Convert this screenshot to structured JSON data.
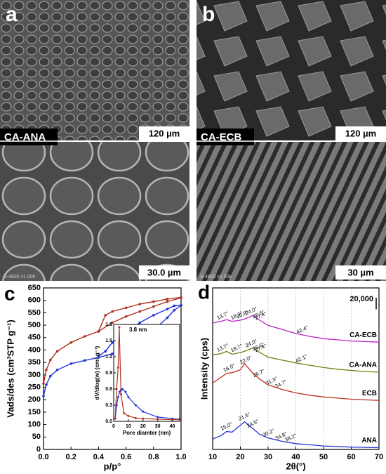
{
  "images": {
    "a": {
      "letter": "a",
      "sample": "CA-ANA",
      "scale_top": "120 µm",
      "scale_bottom": "30.0 µm",
      "instrument": "S-4800 x1.00k"
    },
    "b": {
      "letter": "b",
      "sample": "CA-ECB",
      "scale_top": "120 µm",
      "scale_bottom": "30 µm",
      "instrument": "S-4800 x1.00k"
    }
  },
  "chart_data": [
    {
      "type": "line",
      "panel": "c",
      "xlabel": "p/p°",
      "ylabel": "Vads/des (cm³STP g⁻¹)",
      "xlim": [
        0,
        1
      ],
      "xticks": [
        {
          "value": 0,
          "label": "0.0"
        },
        0.2,
        0.4,
        0.6,
        0.8,
        {
          "value": 1,
          "label": "1.0"
        }
      ],
      "ylim": [
        0,
        650
      ],
      "yticks": [
        0,
        50,
        100,
        150,
        200,
        250,
        300,
        350,
        400,
        450,
        500,
        550,
        600,
        650
      ],
      "series": [
        {
          "name": "CA-ANA",
          "color": "#2233dd",
          "branches": [
            {
              "x": [
                0,
                0.02,
                0.05,
                0.1,
                0.2,
                0.3,
                0.4,
                0.5,
                0.6,
                0.7,
                0.8,
                0.9,
                0.95,
                1.0
              ],
              "values": [
                215,
                260,
                295,
                320,
                345,
                358,
                370,
                385,
                410,
                440,
                480,
                530,
                560,
                580
              ]
            },
            {
              "x": [
                1.0,
                0.95,
                0.9,
                0.8,
                0.7,
                0.6,
                0.5,
                0.45,
                0.4
              ],
              "values": [
                580,
                578,
                565,
                540,
                510,
                470,
                430,
                395,
                375
              ]
            }
          ]
        },
        {
          "name": "CA-ECB",
          "color": "#b03020",
          "branches": [
            {
              "x": [
                0,
                0.02,
                0.05,
                0.1,
                0.2,
                0.3,
                0.4,
                0.5,
                0.6,
                0.7,
                0.8,
                0.9,
                1.0
              ],
              "values": [
                265,
                320,
                360,
                395,
                430,
                455,
                475,
                510,
                535,
                555,
                575,
                595,
                610
              ]
            },
            {
              "x": [
                1.0,
                0.9,
                0.8,
                0.7,
                0.6,
                0.5,
                0.45,
                0.4
              ],
              "values": [
                612,
                605,
                595,
                585,
                570,
                555,
                540,
                475
              ]
            }
          ]
        }
      ],
      "inset": {
        "xlabel": "Pore diamter (nm)",
        "ylabel": "dV/dlog(w) (cm³ g⁻¹)",
        "annotation": "3.8 nm",
        "xlim": [
          0,
          45
        ],
        "xticks": [
          0,
          10,
          20,
          30,
          40
        ],
        "ylim": [
          0,
          1.8
        ],
        "yticks": [
          {
            "value": 0,
            "label": "0.0"
          },
          0.3,
          0.6,
          0.9,
          1.2,
          1.5,
          1.8
        ],
        "series": [
          {
            "color": "#2233dd",
            "x": [
              1,
              2,
              3,
              4,
              5,
              6,
              8,
              10,
              15,
              20,
              30,
              40,
              45
            ],
            "values": [
              0.05,
              0.3,
              0.45,
              0.55,
              0.58,
              0.6,
              0.55,
              0.45,
              0.3,
              0.18,
              0.08,
              0.05,
              0.04
            ]
          },
          {
            "color": "#b03020",
            "x": [
              1,
              2,
              3,
              3.8,
              5,
              7,
              10,
              15,
              20,
              30,
              40,
              45
            ],
            "values": [
              0.05,
              0.6,
              1.0,
              1.75,
              0.5,
              0.15,
              0.1,
              0.06,
              0.05,
              0.04,
              0.03,
              0.03
            ]
          }
        ]
      }
    },
    {
      "type": "line",
      "panel": "d",
      "xlabel": "2θ(°)",
      "ylabel": "Intensity (cps)",
      "grid": true,
      "xlim": [
        10,
        70
      ],
      "xticks": [
        10,
        20,
        30,
        40,
        50,
        60,
        70
      ],
      "ylim": [
        0,
        280000
      ],
      "scale_bar": {
        "value": 20000,
        "label": "20,000"
      },
      "x": [
        10,
        13,
        15,
        17,
        20,
        21.5,
        24.5,
        27,
        30,
        35,
        40,
        45,
        50,
        55,
        60,
        65,
        70
      ],
      "series": [
        {
          "name": "ANA",
          "color": "#2233dd",
          "values": [
            18000,
            24000,
            31000,
            30000,
            42000,
            48000,
            36000,
            26000,
            20000,
            14000,
            10000,
            8000,
            6000,
            5000,
            4000,
            3500,
            3000
          ],
          "peaks": [
            {
              "value": 15,
              "label": "15.0°"
            },
            {
              "value": 21.5,
              "label": "21.5°"
            },
            {
              "value": 24.5,
              "label": "24.5°"
            },
            {
              "value": 30.2,
              "label": "30.2°"
            },
            {
              "value": 34.8,
              "label": "34.8°"
            },
            {
              "value": 38.2,
              "label": "38.2°"
            }
          ]
        },
        {
          "name": "ECB",
          "color": "#c03020",
          "values": [
            115000,
            125000,
            132000,
            133000,
            138000,
            149000,
            132000,
            122000,
            112000,
            104000,
            98000,
            94000,
            91000,
            89000,
            87000,
            86000,
            85000
          ],
          "peaks": [
            {
              "value": 16,
              "label": "16.0°"
            },
            {
              "value": 22,
              "label": "22.0°"
            },
            {
              "value": 26.7,
              "label": "26.7°"
            },
            {
              "value": 31.3,
              "label": "31.3°"
            },
            {
              "value": 34.7,
              "label": "34.7°"
            }
          ]
        },
        {
          "name": "CA-ANA",
          "color": "#7a7a10",
          "values": [
            164000,
            166000,
            170000,
            165000,
            168000,
            170000,
            176000,
            168000,
            160000,
            155000,
            150000,
            146000,
            142000,
            139000,
            137000,
            135000,
            134000
          ],
          "peaks": [
            {
              "value": 13.7,
              "label": "13.7°"
            },
            {
              "value": 18.7,
              "label": "18.7°"
            },
            {
              "value": 24,
              "label": "24.0°"
            },
            {
              "value": 26.6,
              "label": "26.6°"
            },
            {
              "value": 27.4,
              "label": "27.4°"
            },
            {
              "value": 42.1,
              "label": "42.1°"
            }
          ]
        },
        {
          "name": "CA-ECB",
          "color": "#c020c8",
          "values": [
            219000,
            222000,
            225000,
            222000,
            224000,
            226000,
            232000,
            224000,
            215000,
            208000,
            201000,
            196000,
            192000,
            190000,
            188000,
            187000,
            186000
          ],
          "peaks": [
            {
              "value": 13.7,
              "label": "13.7°"
            },
            {
              "value": 18.7,
              "label": "18.7°"
            },
            {
              "value": 20.8,
              "label": "20.8°"
            },
            {
              "value": 24,
              "label": "24.0°"
            },
            {
              "value": 26.6,
              "label": "26.6°"
            },
            {
              "value": 27.4,
              "label": "27.4°"
            },
            {
              "value": 42.4,
              "label": "42.4°"
            }
          ]
        }
      ]
    }
  ]
}
